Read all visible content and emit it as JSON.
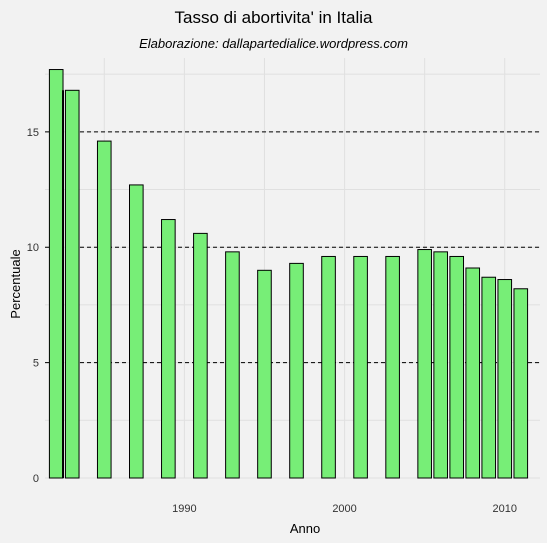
{
  "chart_data": {
    "type": "bar",
    "title": "Tasso di abortivita' in Italia",
    "subtitle": "Elaborazione: dallapartedialice.wordpress.com",
    "xlabel": "Anno",
    "ylabel": "Percentuale",
    "x": [
      1982,
      1983,
      1985,
      1987,
      1989,
      1991,
      1993,
      1995,
      1997,
      1999,
      2001,
      2003,
      2005,
      2006,
      2007,
      2008,
      2009,
      2010,
      2011
    ],
    "values": [
      17.7,
      16.8,
      14.6,
      12.7,
      11.2,
      10.6,
      9.8,
      9.0,
      9.3,
      9.6,
      9.6,
      9.6,
      9.9,
      9.8,
      9.6,
      9.1,
      8.7,
      8.6,
      8.2
    ],
    "ylim": [
      0,
      18.2
    ],
    "xlim": [
      1981.3,
      2012.2
    ],
    "y_ticks": [
      0,
      5,
      10,
      15
    ],
    "y_tick_labels": [
      "0",
      "5",
      "10",
      "15"
    ],
    "x_ticks": [
      1990,
      2000,
      2010
    ],
    "x_tick_labels": [
      "1990",
      "2000",
      "2010"
    ],
    "dashed_reference_lines": [
      5,
      10,
      15
    ],
    "grid": true,
    "colors": {
      "bar_fill": "#77ee77",
      "bar_stroke": "#000000",
      "grid": "#e0e0e0",
      "background": "#f2f2f2"
    }
  }
}
